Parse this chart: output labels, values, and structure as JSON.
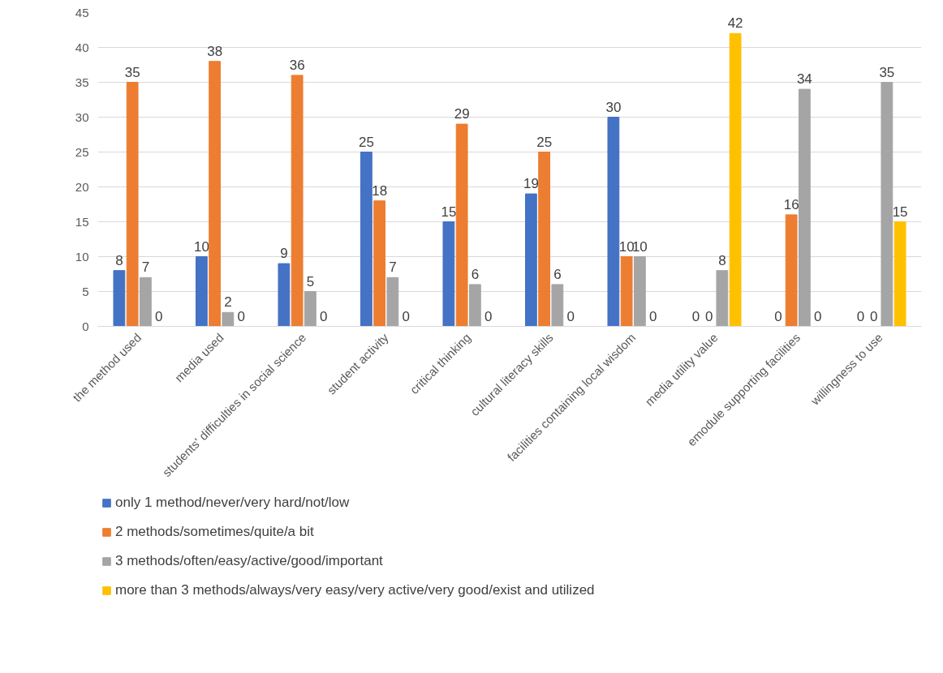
{
  "chart_data": {
    "type": "bar",
    "categories": [
      "the method used",
      "media used",
      "students' difficulties in social science",
      "student activity",
      "critical thinking",
      "cultural literacy skills",
      "facilities containing local wisdom",
      "media utility value",
      "emodule supporting facilities",
      "willingness to use"
    ],
    "series": [
      {
        "name": "only 1 method/never/very hard/not/low",
        "color": "#4472c4",
        "values": [
          8,
          10,
          9,
          25,
          15,
          19,
          30,
          0,
          0,
          0
        ]
      },
      {
        "name": "2 methods/sometimes/quite/a bit",
        "color": "#ed7d31",
        "values": [
          35,
          38,
          36,
          18,
          29,
          25,
          10,
          0,
          16,
          0
        ]
      },
      {
        "name": "3 methods/often/easy/active/good/important",
        "color": "#a5a5a5",
        "values": [
          7,
          2,
          5,
          7,
          6,
          6,
          10,
          8,
          34,
          35
        ]
      },
      {
        "name": "more than 3 methods/always/very easy/very active/very good/exist and utilized",
        "color": "#ffc000",
        "values": [
          0,
          0,
          0,
          0,
          0,
          0,
          0,
          42,
          0,
          15
        ]
      }
    ],
    "ylim": [
      0,
      45
    ],
    "yticks": [
      0,
      5,
      10,
      15,
      20,
      25,
      30,
      35,
      40,
      45
    ],
    "grid": "y",
    "legend": "bottom",
    "data_labels": true
  }
}
